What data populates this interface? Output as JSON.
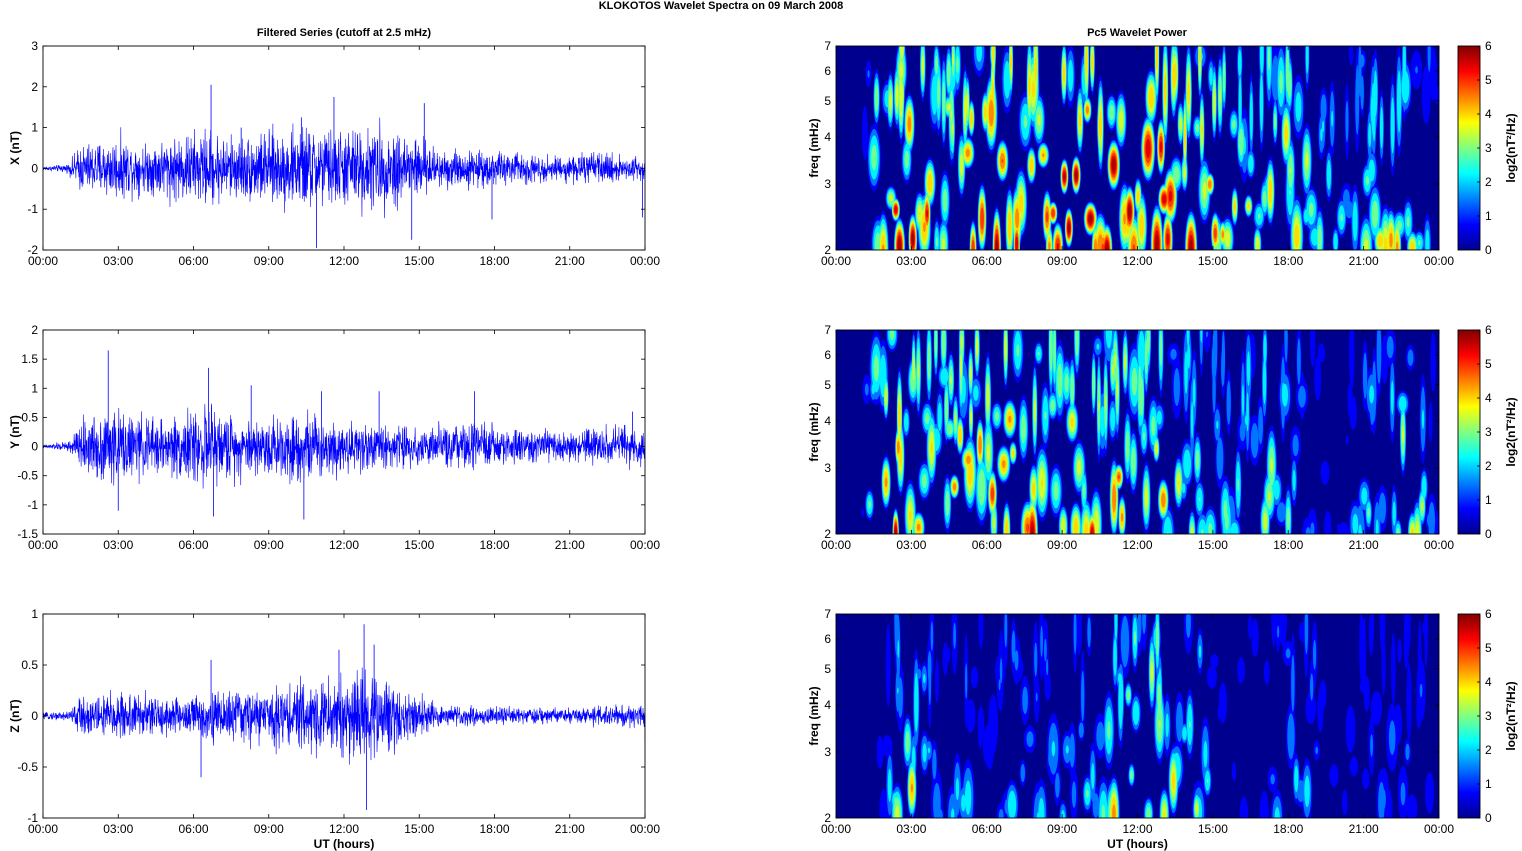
{
  "figure": {
    "title": "KLOKOTOS Wavelet Spectra on 09 March     2008",
    "left_title": "Filtered Series (cutoff at 2.5 mHz)",
    "right_title": "Pc5 Wavelet Power"
  },
  "chart_data": [
    {
      "type": "line",
      "series": [
        {
          "name": "X",
          "color": "#0000ff"
        }
      ],
      "ylabel": "X (nT)",
      "xlabel": "",
      "xlim": [
        0,
        24
      ],
      "ylim": [
        -2,
        3
      ],
      "yticks": [
        "-2",
        "-1",
        "0",
        "1",
        "2",
        "3"
      ],
      "yticks_values": [
        -2,
        -1,
        0,
        1,
        2,
        3
      ],
      "xticks": [
        "00:00",
        "03:00",
        "06:00",
        "09:00",
        "12:00",
        "15:00",
        "18:00",
        "21:00",
        "00:00"
      ],
      "envelope": [
        [
          0,
          0.05
        ],
        [
          1,
          0.12
        ],
        [
          1.5,
          0.65
        ],
        [
          3,
          0.85
        ],
        [
          4,
          0.65
        ],
        [
          5,
          0.85
        ],
        [
          6.5,
          1.05
        ],
        [
          7.5,
          0.85
        ],
        [
          9,
          1.0
        ],
        [
          10.5,
          1.15
        ],
        [
          11.5,
          1.05
        ],
        [
          13,
          1.15
        ],
        [
          14.5,
          1.05
        ],
        [
          15.5,
          0.6
        ],
        [
          17,
          0.5
        ],
        [
          19,
          0.45
        ],
        [
          20.5,
          0.32
        ],
        [
          21.5,
          0.42
        ],
        [
          24,
          0.35
        ]
      ],
      "spikes": [
        [
          6.7,
          2.05
        ],
        [
          7.9,
          1.0
        ],
        [
          10.3,
          1.25
        ],
        [
          10.9,
          -1.95
        ],
        [
          11.6,
          1.75
        ],
        [
          14.7,
          -1.75
        ],
        [
          15.2,
          1.6
        ],
        [
          17.9,
          -1.25
        ],
        [
          23.9,
          -1.2
        ]
      ],
      "grid": false,
      "legend": "none"
    },
    {
      "type": "line",
      "series": [
        {
          "name": "Y",
          "color": "#0000ff"
        }
      ],
      "ylabel": "Y (nT)",
      "xlabel": "",
      "xlim": [
        0,
        24
      ],
      "ylim": [
        -1.5,
        2
      ],
      "yticks": [
        "-1.5",
        "-1",
        "-0.5",
        "0",
        "0.5",
        "1",
        "1.5",
        "2"
      ],
      "yticks_values": [
        -1.5,
        -1,
        -0.5,
        0,
        0.5,
        1,
        1.5,
        2
      ],
      "xticks": [
        "00:00",
        "03:00",
        "06:00",
        "09:00",
        "12:00",
        "15:00",
        "18:00",
        "21:00",
        "00:00"
      ],
      "envelope": [
        [
          0,
          0.03
        ],
        [
          1,
          0.1
        ],
        [
          1.5,
          0.45
        ],
        [
          2.5,
          0.75
        ],
        [
          3.5,
          0.6
        ],
        [
          5,
          0.55
        ],
        [
          6.5,
          0.75
        ],
        [
          8,
          0.55
        ],
        [
          9,
          0.6
        ],
        [
          10.5,
          0.65
        ],
        [
          12,
          0.5
        ],
        [
          14,
          0.42
        ],
        [
          15.5,
          0.38
        ],
        [
          17.5,
          0.45
        ],
        [
          19.5,
          0.32
        ],
        [
          21,
          0.3
        ],
        [
          22.5,
          0.38
        ],
        [
          24,
          0.4
        ]
      ],
      "spikes": [
        [
          2.6,
          1.65
        ],
        [
          3.0,
          -1.1
        ],
        [
          6.6,
          1.35
        ],
        [
          6.8,
          -1.2
        ],
        [
          8.3,
          1.05
        ],
        [
          10.4,
          -1.25
        ],
        [
          11.1,
          0.95
        ],
        [
          13.4,
          0.95
        ],
        [
          17.2,
          0.95
        ],
        [
          23.5,
          0.6
        ]
      ],
      "grid": false,
      "legend": "none"
    },
    {
      "type": "line",
      "series": [
        {
          "name": "Z",
          "color": "#0000ff"
        }
      ],
      "ylabel": "Z (nT)",
      "xlabel": "UT (hours)",
      "xlim": [
        0,
        24
      ],
      "ylim": [
        -1,
        1
      ],
      "yticks": [
        "-1",
        "-0.5",
        "0",
        "0.5",
        "1"
      ],
      "yticks_values": [
        -1,
        -0.5,
        0,
        0.5,
        1
      ],
      "xticks": [
        "00:00",
        "03:00",
        "06:00",
        "09:00",
        "12:00",
        "15:00",
        "18:00",
        "21:00",
        "00:00"
      ],
      "envelope": [
        [
          0,
          0.03
        ],
        [
          1,
          0.06
        ],
        [
          1.5,
          0.2
        ],
        [
          3,
          0.28
        ],
        [
          5,
          0.2
        ],
        [
          7,
          0.28
        ],
        [
          9,
          0.3
        ],
        [
          11,
          0.4
        ],
        [
          12.5,
          0.55
        ],
        [
          13.5,
          0.4
        ],
        [
          15,
          0.25
        ],
        [
          16,
          0.1
        ],
        [
          18,
          0.1
        ],
        [
          20,
          0.08
        ],
        [
          21,
          0.08
        ],
        [
          22,
          0.12
        ],
        [
          24,
          0.12
        ]
      ],
      "spikes": [
        [
          6.3,
          -0.6
        ],
        [
          6.7,
          0.55
        ],
        [
          11.8,
          0.65
        ],
        [
          12.8,
          0.9
        ],
        [
          12.9,
          -0.92
        ],
        [
          13.2,
          0.7
        ],
        [
          24.0,
          -0.25
        ]
      ],
      "grid": false,
      "legend": "none"
    },
    {
      "type": "heatmap",
      "ylabel": "freq (mHz)",
      "xlabel": "",
      "xlim": [
        0,
        24
      ],
      "ylim": [
        2,
        7
      ],
      "yscale": "log",
      "yticks": [
        "2",
        "3",
        "4",
        "5",
        "6",
        "7"
      ],
      "yticks_values": [
        2,
        3,
        4,
        5,
        6,
        7
      ],
      "xticks": [
        "00:00",
        "03:00",
        "06:00",
        "09:00",
        "12:00",
        "15:00",
        "18:00",
        "21:00",
        "00:00"
      ],
      "colorbar": {
        "label": "log2(nT²/Hz)",
        "range": [
          0,
          6
        ],
        "ticks": [
          "0",
          "1",
          "2",
          "3",
          "4",
          "5",
          "6"
        ],
        "colormap": "jet"
      },
      "activity": [
        [
          0,
          0
        ],
        [
          1,
          0.3
        ],
        [
          1.5,
          4.5
        ],
        [
          3,
          5.5
        ],
        [
          4,
          4.2
        ],
        [
          5,
          5.0
        ],
        [
          6,
          5.6
        ],
        [
          7.5,
          5.4
        ],
        [
          9,
          5.6
        ],
        [
          10.5,
          6.0
        ],
        [
          12,
          6.0
        ],
        [
          13.5,
          5.7
        ],
        [
          15,
          5.2
        ],
        [
          16,
          3.6
        ],
        [
          17,
          3.8
        ],
        [
          18,
          4.6
        ],
        [
          19,
          3.2
        ],
        [
          20.5,
          2.2
        ],
        [
          21.5,
          3.6
        ],
        [
          23,
          3.8
        ],
        [
          24,
          1.0
        ]
      ]
    },
    {
      "type": "heatmap",
      "ylabel": "freq (mHz)",
      "xlabel": "",
      "xlim": [
        0,
        24
      ],
      "ylim": [
        2,
        7
      ],
      "yscale": "log",
      "yticks": [
        "2",
        "3",
        "4",
        "5",
        "6",
        "7"
      ],
      "yticks_values": [
        2,
        3,
        4,
        5,
        6,
        7
      ],
      "xticks": [
        "00:00",
        "03:00",
        "06:00",
        "09:00",
        "12:00",
        "15:00",
        "18:00",
        "21:00",
        "00:00"
      ],
      "colorbar": {
        "label": "log2(nT²/Hz)",
        "range": [
          0,
          6
        ],
        "ticks": [
          "0",
          "1",
          "2",
          "3",
          "4",
          "5",
          "6"
        ],
        "colormap": "jet"
      },
      "activity": [
        [
          0,
          0
        ],
        [
          1,
          0.2
        ],
        [
          1.5,
          4.6
        ],
        [
          2.5,
          5.8
        ],
        [
          3.5,
          4.4
        ],
        [
          5,
          4.8
        ],
        [
          6,
          5.0
        ],
        [
          7,
          5.2
        ],
        [
          8.5,
          4.6
        ],
        [
          10,
          4.6
        ],
        [
          11.5,
          4.8
        ],
        [
          13,
          4.2
        ],
        [
          14,
          3.2
        ],
        [
          15.5,
          2.6
        ],
        [
          17,
          3.6
        ],
        [
          18.5,
          2.4
        ],
        [
          20,
          0.6
        ],
        [
          21,
          2.6
        ],
        [
          22,
          3.0
        ],
        [
          23,
          4.2
        ],
        [
          24,
          0.8
        ]
      ]
    },
    {
      "type": "heatmap",
      "ylabel": "freq (mHz)",
      "xlabel": "UT (hours)",
      "xlim": [
        0,
        24
      ],
      "ylim": [
        2,
        7
      ],
      "yscale": "log",
      "yticks": [
        "2",
        "3",
        "4",
        "5",
        "6",
        "7"
      ],
      "yticks_values": [
        2,
        3,
        4,
        5,
        6,
        7
      ],
      "xticks": [
        "00:00",
        "03:00",
        "06:00",
        "09:00",
        "12:00",
        "15:00",
        "18:00",
        "21:00",
        "00:00"
      ],
      "colorbar": {
        "label": "log2(nT²/Hz)",
        "range": [
          0,
          6
        ],
        "ticks": [
          "0",
          "1",
          "2",
          "3",
          "4",
          "5",
          "6"
        ],
        "colormap": "jet"
      },
      "activity": [
        [
          0,
          0
        ],
        [
          1.5,
          0.4
        ],
        [
          2.5,
          3.0
        ],
        [
          3,
          4.2
        ],
        [
          4,
          1.6
        ],
        [
          5,
          2.2
        ],
        [
          6,
          1.5
        ],
        [
          7,
          2.4
        ],
        [
          8.5,
          2.0
        ],
        [
          10,
          2.4
        ],
        [
          11,
          3.6
        ],
        [
          12,
          4.0
        ],
        [
          12.5,
          4.6
        ],
        [
          13.5,
          3.6
        ],
        [
          14.5,
          3.0
        ],
        [
          15.5,
          1.0
        ],
        [
          17,
          1.4
        ],
        [
          18,
          2.4
        ],
        [
          19,
          2.2
        ],
        [
          20,
          0.8
        ],
        [
          21,
          1.6
        ],
        [
          22,
          1.8
        ],
        [
          23.5,
          1.6
        ],
        [
          24,
          0.3
        ]
      ]
    }
  ]
}
